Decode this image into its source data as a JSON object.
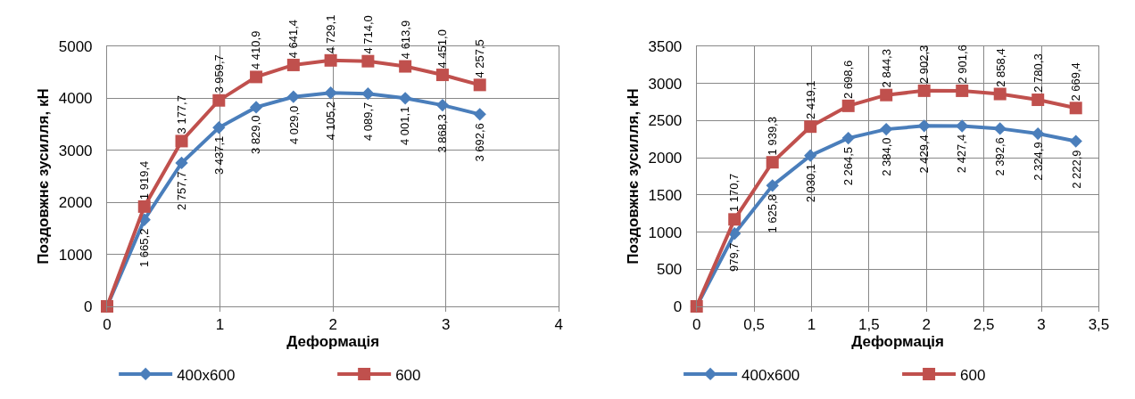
{
  "chart_data": [
    {
      "type": "line",
      "xlabel": "Деформація",
      "ylabel": "Поздовжнє зусилля, кН",
      "x": [
        0,
        0.33,
        0.66,
        0.99,
        1.32,
        1.65,
        1.98,
        2.31,
        2.64,
        2.97,
        3.3
      ],
      "xlim": [
        0,
        4
      ],
      "xticks": [
        0,
        1,
        2,
        3,
        4
      ],
      "ylim": [
        0,
        5000
      ],
      "yticks": [
        0,
        1000,
        2000,
        3000,
        4000,
        5000
      ],
      "grid": true,
      "legend": "bottom",
      "series": [
        {
          "name": "400x600",
          "color": "#4a7ebb",
          "marker": "diamond",
          "values": [
            0,
            1665.2,
            2757.7,
            3437.1,
            3829.0,
            4029.0,
            4105.2,
            4089.7,
            4001.1,
            3868.3,
            3692.6
          ],
          "value_labels": [
            null,
            "1 665,2",
            "2 757,7",
            "3 437,1",
            "3 829,0",
            "4 029,0",
            "4 105,2",
            "4 089,7",
            "4 001,1",
            "3 868,3",
            "3 692,6"
          ]
        },
        {
          "name": "600",
          "color": "#c0504d",
          "marker": "square",
          "values": [
            0,
            1919.4,
            3177.7,
            3959.7,
            4410.9,
            4641.4,
            4729.1,
            4714.0,
            4613.9,
            4451.0,
            4257.5
          ],
          "value_labels": [
            null,
            "1 919,4",
            "3 177,7",
            "3 959,7",
            "4 410,9",
            "4 641,4",
            "4 729,1",
            "4 714,0",
            "4 613,9",
            "4 451,0",
            "4 257,5"
          ]
        }
      ]
    },
    {
      "type": "line",
      "xlabel": "Деформація",
      "ylabel": "Поздовжнє зусилля, кН",
      "x": [
        0,
        0.33,
        0.66,
        0.99,
        1.32,
        1.65,
        1.98,
        2.31,
        2.64,
        2.97,
        3.3
      ],
      "xlim": [
        0,
        3.5
      ],
      "xticks": [
        0,
        {
          "value": 0.5,
          "label": "0,5"
        },
        1,
        {
          "value": 1.5,
          "label": "1,5"
        },
        2,
        {
          "value": 2.5,
          "label": "2,5"
        },
        3,
        {
          "value": 3.5,
          "label": "3,5"
        }
      ],
      "ylim": [
        0,
        3500
      ],
      "yticks": [
        0,
        500,
        1000,
        1500,
        2000,
        2500,
        3000,
        3500
      ],
      "grid": true,
      "legend": "bottom",
      "series": [
        {
          "name": "400x600",
          "color": "#4a7ebb",
          "marker": "diamond",
          "values": [
            0,
            979.7,
            1625.8,
            2030.1,
            2264.5,
            2384.0,
            2429.4,
            2427.4,
            2392.6,
            2324.9,
            2222.9
          ],
          "value_labels": [
            null,
            "979,7",
            "1 625,8",
            "2 030,1",
            "2 264,5",
            "2 384,0",
            "2 429,4",
            "2 427,4",
            "2 392,6",
            "2 324,9",
            "2 222,9"
          ]
        },
        {
          "name": "600",
          "color": "#c0504d",
          "marker": "square",
          "values": [
            0,
            1170.7,
            1939.3,
            2419.1,
            2698.6,
            2844.3,
            2902.3,
            2901.6,
            2858.4,
            2780.3,
            2669.4
          ],
          "value_labels": [
            null,
            "1 170,7",
            "1 939,3",
            "2 419,1",
            "2 698,6",
            "2 844,3",
            "2 902,3",
            "2 901,6",
            "2 858,4",
            "2 780,3",
            "2 669,4"
          ]
        }
      ]
    }
  ]
}
